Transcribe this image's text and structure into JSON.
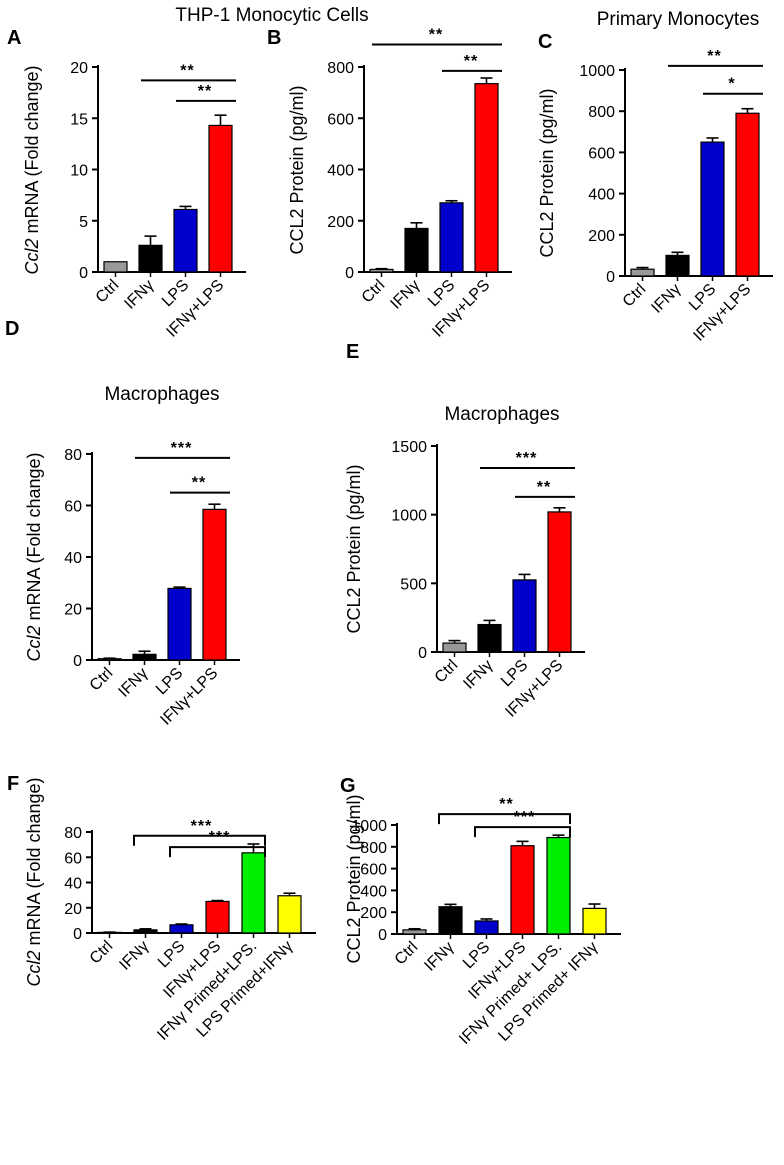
{
  "figure": {
    "titles": {
      "thp1": "THP-1 Monocytic Cells",
      "primary": "Primary Monocytes",
      "macro_d": "Macrophages",
      "macro_e": "Macrophages"
    }
  },
  "chart_data": [
    {
      "id": "A",
      "type": "bar",
      "ylabel_italic": "Ccl2",
      "ylabel_rest": " mRNA (Fold change)",
      "yticks": [
        0,
        5,
        10,
        15,
        20
      ],
      "ylim": [
        0,
        20
      ],
      "categories": [
        "Ctrl",
        "IFNγ",
        "LPS",
        "IFNγ+LPS"
      ],
      "values": [
        1.0,
        2.6,
        6.1,
        14.3
      ],
      "errors": [
        0,
        0.9,
        0.3,
        1.0
      ],
      "colors": [
        "#999999",
        "#000000",
        "#0000CC",
        "#FF0000"
      ],
      "significance": [
        {
          "from": 1,
          "to": 3,
          "label": "**",
          "y": 18.7
        },
        {
          "from": 2,
          "to": 3,
          "label": "**",
          "y": 16.7
        }
      ]
    },
    {
      "id": "B",
      "type": "bar",
      "ylabel_italic": "",
      "ylabel_rest": "CCL2 Protein (pg/ml)",
      "yticks": [
        0,
        200,
        400,
        600,
        800
      ],
      "ylim": [
        0,
        800
      ],
      "categories": [
        "Ctrl",
        "IFNγ",
        "LPS",
        "IFNγ+LPS"
      ],
      "values": [
        10,
        170,
        270,
        735
      ],
      "errors": [
        3,
        22,
        8,
        22
      ],
      "colors": [
        "#999999",
        "#000000",
        "#0000CC",
        "#FF0000"
      ],
      "significance": [
        {
          "from": 0,
          "to": 3,
          "label": "**",
          "y": 888
        },
        {
          "from": 2,
          "to": 3,
          "label": "**",
          "y": 785
        }
      ]
    },
    {
      "id": "C",
      "type": "bar",
      "ylabel_italic": "",
      "ylabel_rest": "CCL2 Protein (pg/ml)",
      "yticks": [
        0,
        200,
        400,
        600,
        800,
        1000
      ],
      "ylim": [
        0,
        1000
      ],
      "categories": [
        "Ctrl",
        "IFNγ",
        "LPS",
        "IFNγ+LPS"
      ],
      "values": [
        33,
        100,
        650,
        790
      ],
      "errors": [
        8,
        15,
        20,
        22
      ],
      "colors": [
        "#999999",
        "#000000",
        "#0000CC",
        "#FF0000"
      ],
      "significance": [
        {
          "from": 1,
          "to": 3,
          "label": "**",
          "y": 1020
        },
        {
          "from": 2,
          "to": 3,
          "label": "*",
          "y": 885
        }
      ]
    },
    {
      "id": "D",
      "type": "bar",
      "ylabel_italic": "Ccl2",
      "ylabel_rest": " mRNA (Fold change)",
      "yticks": [
        0,
        20,
        40,
        60,
        80
      ],
      "ylim": [
        0,
        80
      ],
      "categories": [
        "Ctrl",
        "IFNγ",
        "LPS",
        "IFNγ+LPS"
      ],
      "values": [
        0.5,
        2.2,
        27.8,
        58.5
      ],
      "errors": [
        0.2,
        1.2,
        0.5,
        2.0
      ],
      "colors": [
        "#999999",
        "#000000",
        "#0000CC",
        "#FF0000"
      ],
      "significance": [
        {
          "from": 1,
          "to": 3,
          "label": "***",
          "y": 78.5
        },
        {
          "from": 2,
          "to": 3,
          "label": "**",
          "y": 65
        }
      ]
    },
    {
      "id": "E",
      "type": "bar",
      "ylabel_italic": "",
      "ylabel_rest": "CCL2 Protein (pg/ml)",
      "yticks": [
        0,
        500,
        1000,
        1500
      ],
      "ylim": [
        0,
        1500
      ],
      "categories": [
        "Ctrl",
        "IFNγ",
        "LPS",
        "IFNγ+LPS"
      ],
      "values": [
        65,
        200,
        525,
        1020
      ],
      "errors": [
        18,
        30,
        40,
        30
      ],
      "colors": [
        "#999999",
        "#000000",
        "#0000CC",
        "#FF0000"
      ],
      "significance": [
        {
          "from": 1,
          "to": 3,
          "label": "***",
          "y": 1340
        },
        {
          "from": 2,
          "to": 3,
          "label": "**",
          "y": 1130
        }
      ]
    },
    {
      "id": "F",
      "type": "bar",
      "ylabel_italic": "Ccl2",
      "ylabel_rest": " mRNA (Fold change)",
      "yticks": [
        0,
        20,
        40,
        60,
        80
      ],
      "ylim": [
        0,
        80
      ],
      "categories": [
        "Ctrl",
        "IFNγ",
        "LPS",
        "IFNγ+LPS",
        "IFNγ Primed+LPS.",
        "LPS Primed+IFNγ"
      ],
      "values": [
        0.5,
        2.5,
        6.5,
        25,
        63.5,
        29.5
      ],
      "errors": [
        0.2,
        0.8,
        0.6,
        0.7,
        7,
        2
      ],
      "colors": [
        "#999999",
        "#000000",
        "#0000CC",
        "#FF0000",
        "#00EE00",
        "#FFFF00"
      ],
      "significance": [
        {
          "from": 1,
          "to": 4,
          "label": "***",
          "y": 77
        },
        {
          "from": 2,
          "to": 4,
          "label": "***",
          "y": 68
        }
      ]
    },
    {
      "id": "G",
      "type": "bar",
      "ylabel_italic": "",
      "ylabel_rest": "CCL2 Protein (pg/ml)",
      "yticks": [
        0,
        200,
        400,
        600,
        800,
        1000
      ],
      "ylim": [
        0,
        1000
      ],
      "categories": [
        "Ctrl",
        "IFNγ",
        "LPS",
        "IFNγ+LPS",
        "IFNγ Primed+ LPS.",
        "LPS Primed+ IFNγ"
      ],
      "values": [
        38,
        250,
        120,
        810,
        885,
        235
      ],
      "errors": [
        10,
        22,
        18,
        40,
        22,
        40
      ],
      "colors": [
        "#999999",
        "#000000",
        "#0000CC",
        "#FF0000",
        "#00EE00",
        "#FFFF00"
      ],
      "significance": [
        {
          "from": 1,
          "to": 4,
          "label": "**",
          "y": 1100
        },
        {
          "from": 2,
          "to": 4,
          "label": "***",
          "y": 980
        }
      ]
    }
  ]
}
